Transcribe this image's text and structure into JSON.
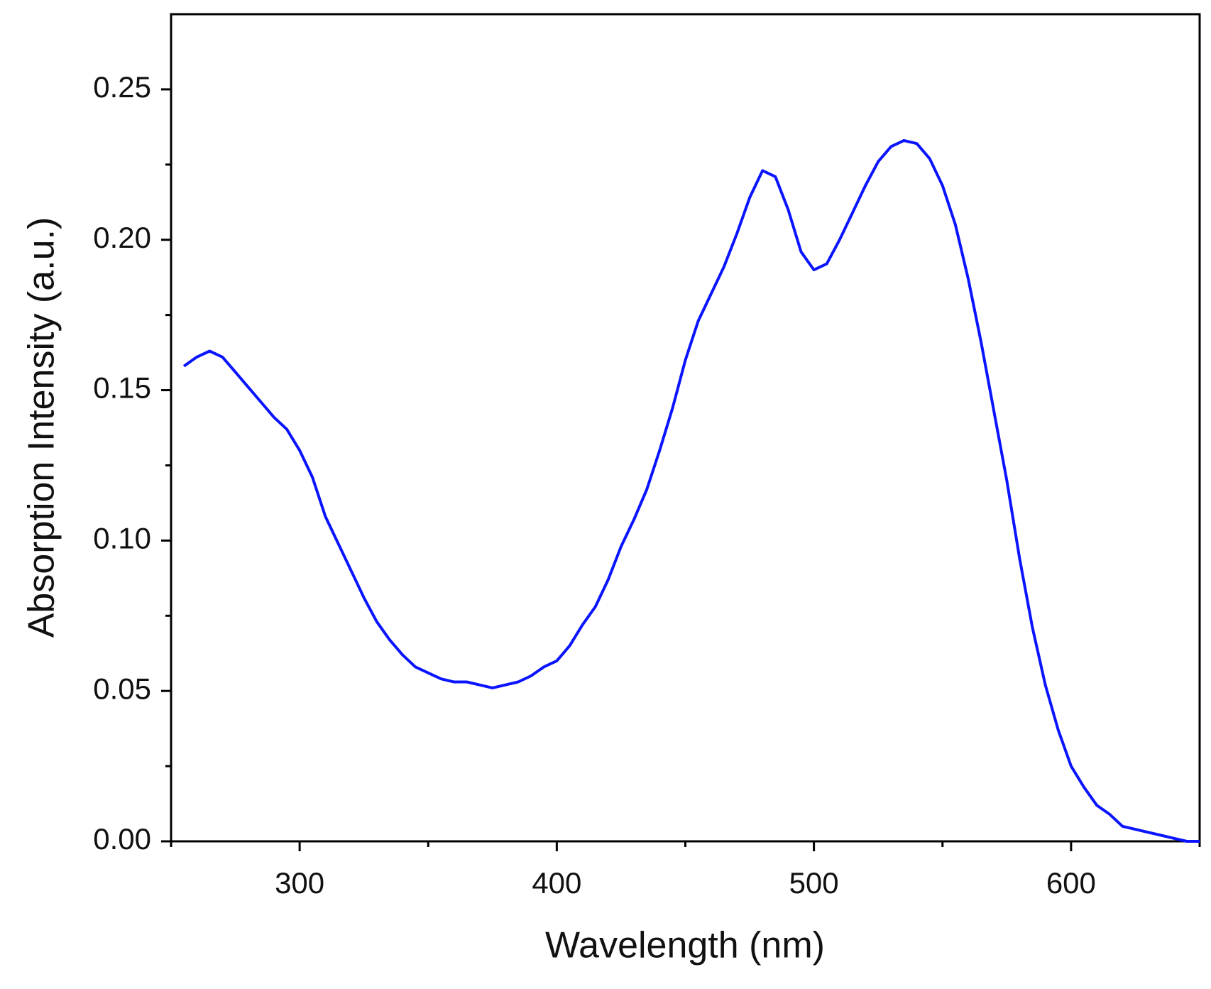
{
  "chart_data": {
    "type": "line",
    "xlabel": "Wavelength (nm)",
    "ylabel": "Absorption Intensity (a.u.)",
    "x": [
      255,
      260,
      265,
      270,
      275,
      280,
      285,
      290,
      295,
      300,
      305,
      310,
      315,
      320,
      325,
      330,
      335,
      340,
      345,
      350,
      355,
      360,
      365,
      370,
      375,
      380,
      385,
      390,
      395,
      400,
      405,
      410,
      415,
      420,
      425,
      430,
      435,
      440,
      445,
      450,
      455,
      460,
      465,
      470,
      475,
      480,
      485,
      490,
      495,
      500,
      505,
      510,
      515,
      520,
      525,
      530,
      535,
      540,
      545,
      550,
      555,
      560,
      565,
      570,
      575,
      580,
      585,
      590,
      595,
      600,
      605,
      610,
      615,
      620,
      625,
      630,
      635,
      640,
      645,
      650
    ],
    "series": [
      {
        "color": "#0a14ff",
        "values": [
          0.158,
          0.161,
          0.163,
          0.161,
          0.156,
          0.151,
          0.146,
          0.141,
          0.137,
          0.13,
          0.121,
          0.108,
          0.099,
          0.09,
          0.081,
          0.073,
          0.067,
          0.062,
          0.058,
          0.056,
          0.054,
          0.053,
          0.053,
          0.052,
          0.051,
          0.052,
          0.053,
          0.055,
          0.058,
          0.06,
          0.065,
          0.072,
          0.078,
          0.087,
          0.098,
          0.107,
          0.117,
          0.13,
          0.144,
          0.16,
          0.173,
          0.182,
          0.191,
          0.202,
          0.214,
          0.223,
          0.221,
          0.21,
          0.196,
          0.19,
          0.192,
          0.2,
          0.209,
          0.218,
          0.226,
          0.231,
          0.233,
          0.232,
          0.227,
          0.218,
          0.205,
          0.187,
          0.166,
          0.143,
          0.12,
          0.094,
          0.071,
          0.052,
          0.037,
          0.025,
          0.018,
          0.012,
          0.009,
          0.005,
          0.004,
          0.003,
          0.002,
          0.001,
          0.0,
          0.0
        ]
      }
    ],
    "xlim": [
      250,
      650
    ],
    "xticks": [
      300,
      400,
      500,
      600
    ],
    "ylim": [
      0,
      0.275
    ],
    "yticks": [
      {
        "value": 0,
        "label": "0.00"
      },
      0.05,
      {
        "value": 0.1,
        "label": "0.10"
      },
      0.15,
      {
        "value": 0.2,
        "label": "0.20"
      },
      0.25
    ],
    "grid": false
  }
}
